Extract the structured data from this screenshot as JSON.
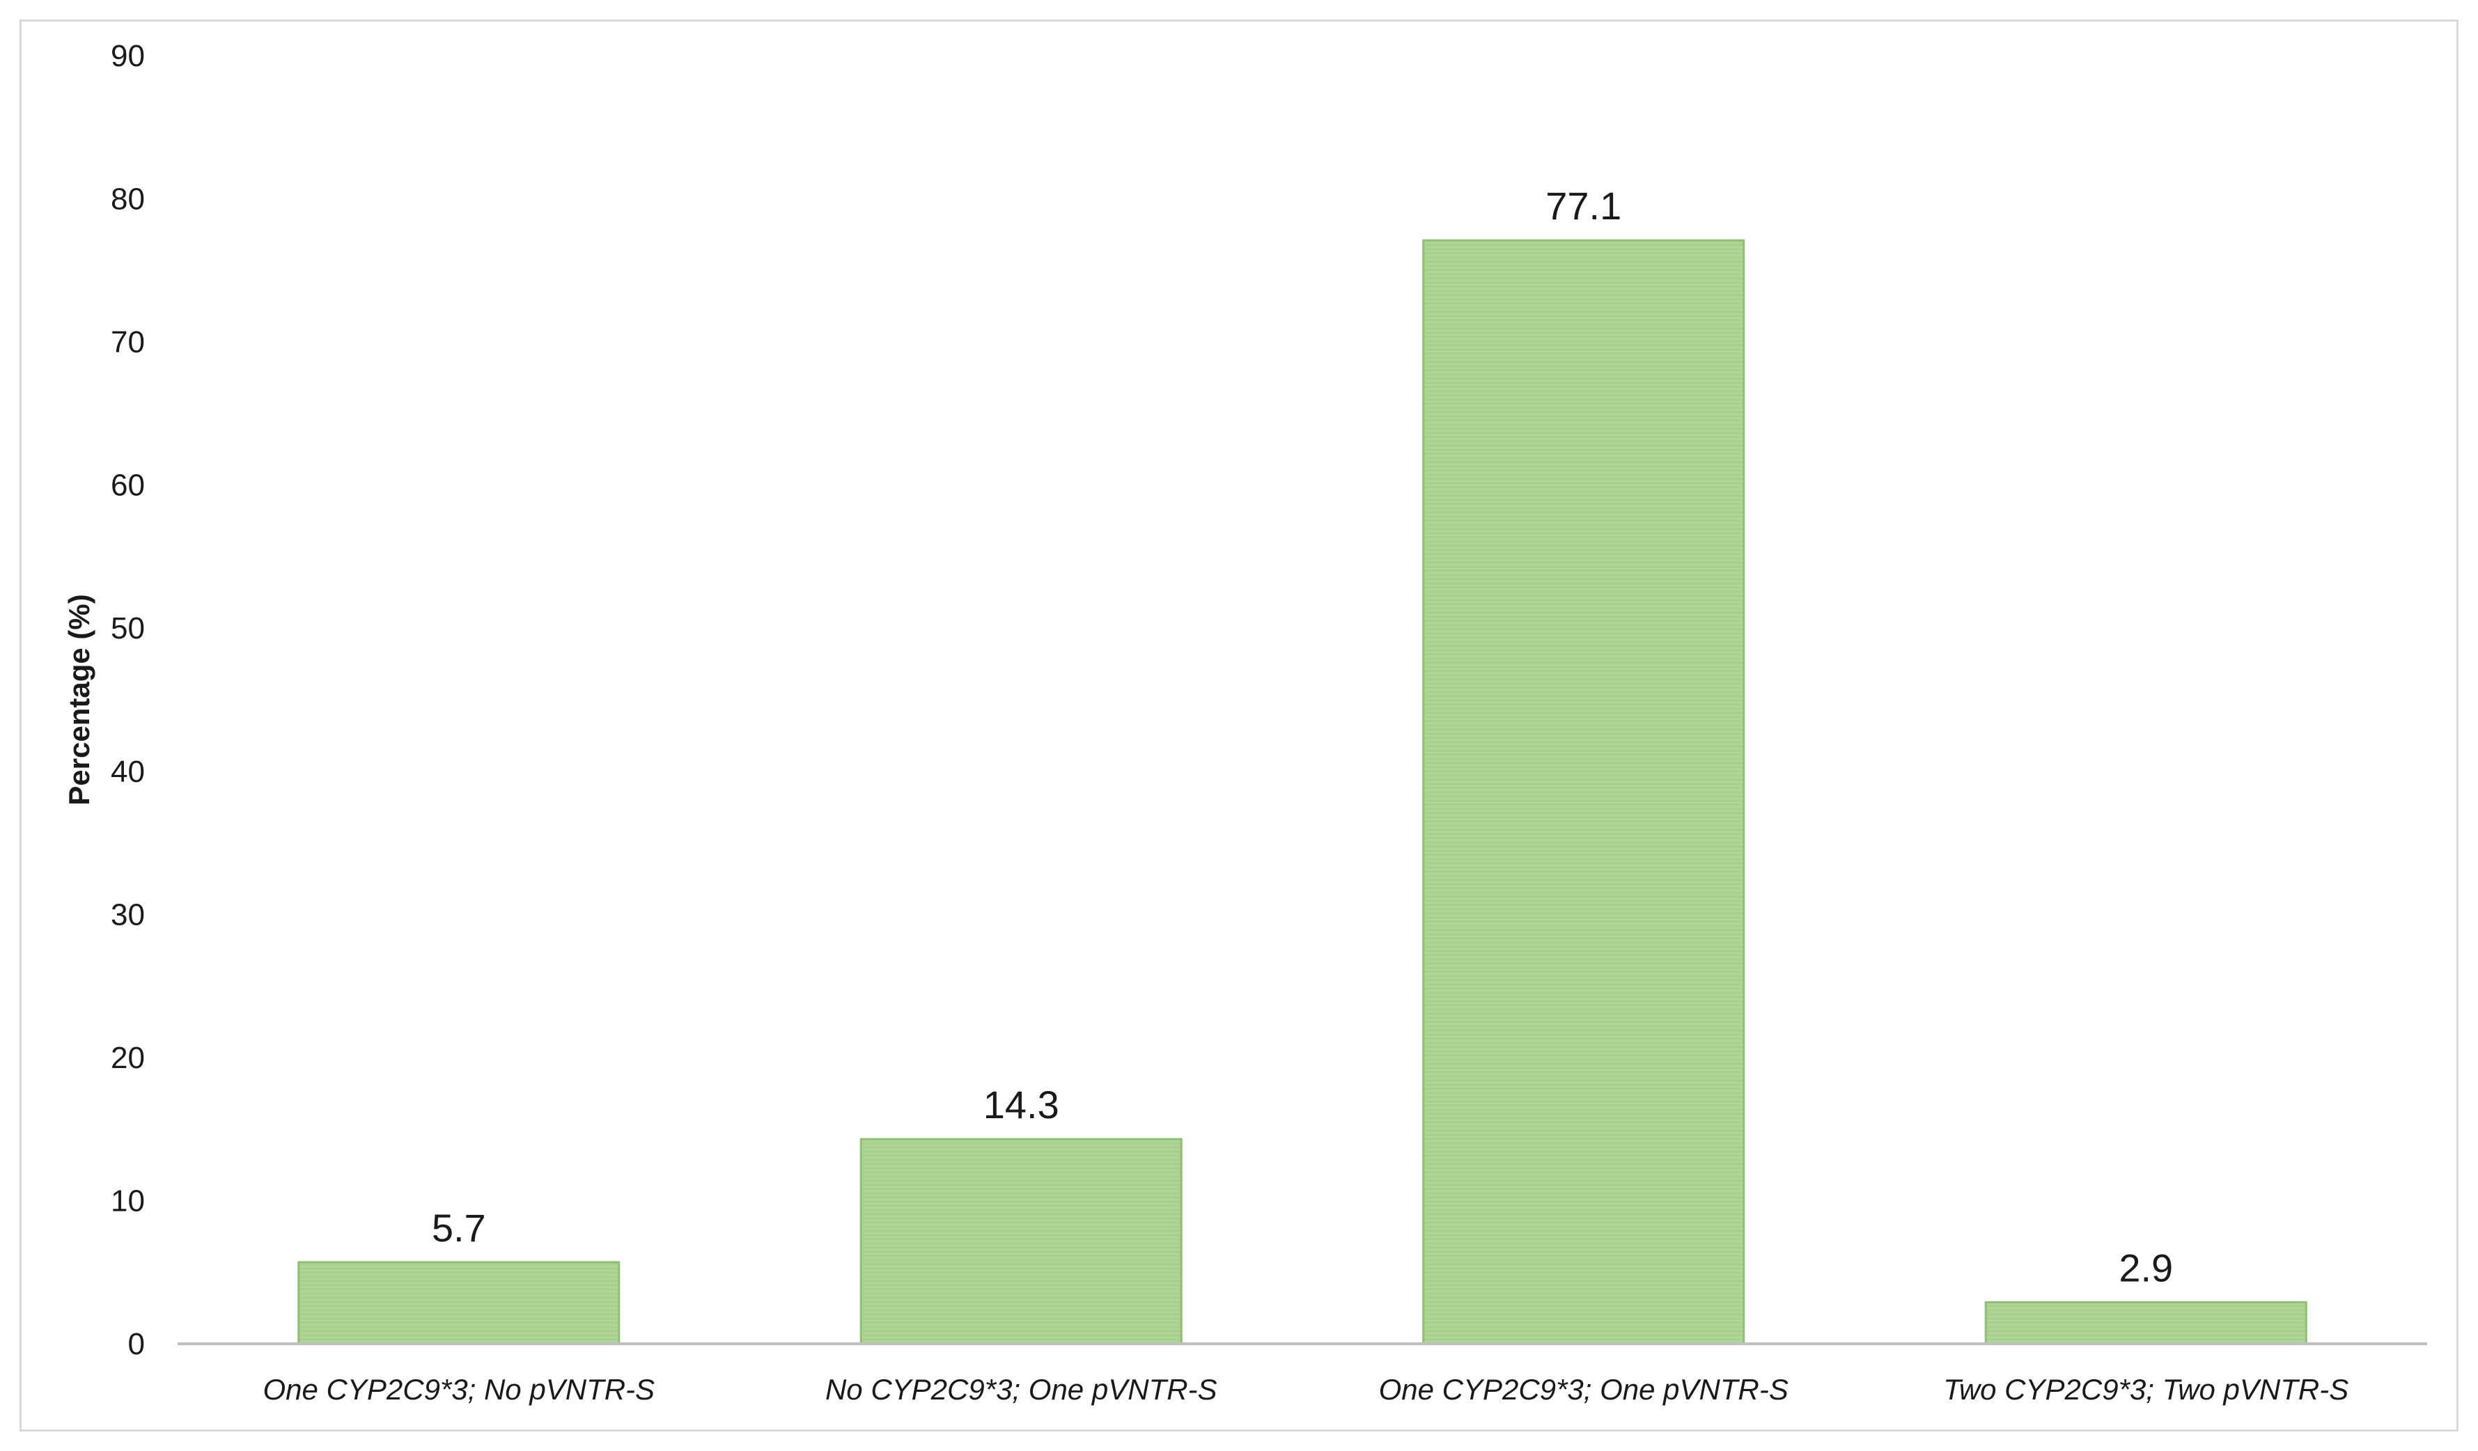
{
  "chart_data": {
    "type": "bar",
    "categories": [
      "One CYP2C9*3; No pVNTR-S",
      "No CYP2C9*3; One pVNTR-S",
      "One CYP2C9*3; One pVNTR-S",
      "Two CYP2C9*3; Two pVNTR-S"
    ],
    "values": [
      5.7,
      14.3,
      77.1,
      2.9
    ],
    "data_labels": [
      "5.7",
      "14.3",
      "77.1",
      "2.9"
    ],
    "title": "",
    "xlabel": "",
    "ylabel": "Percentage (%)",
    "ylim": [
      0,
      90
    ],
    "yticks": [
      0,
      10,
      20,
      30,
      40,
      50,
      60,
      70,
      80,
      90
    ],
    "grid": false,
    "legend": "none",
    "colors": {
      "bar_fill": "#a9d18e",
      "bar_stroke": "#8fbf70",
      "axis": "#bfbfbf",
      "frame": "#d9d9d9"
    }
  }
}
